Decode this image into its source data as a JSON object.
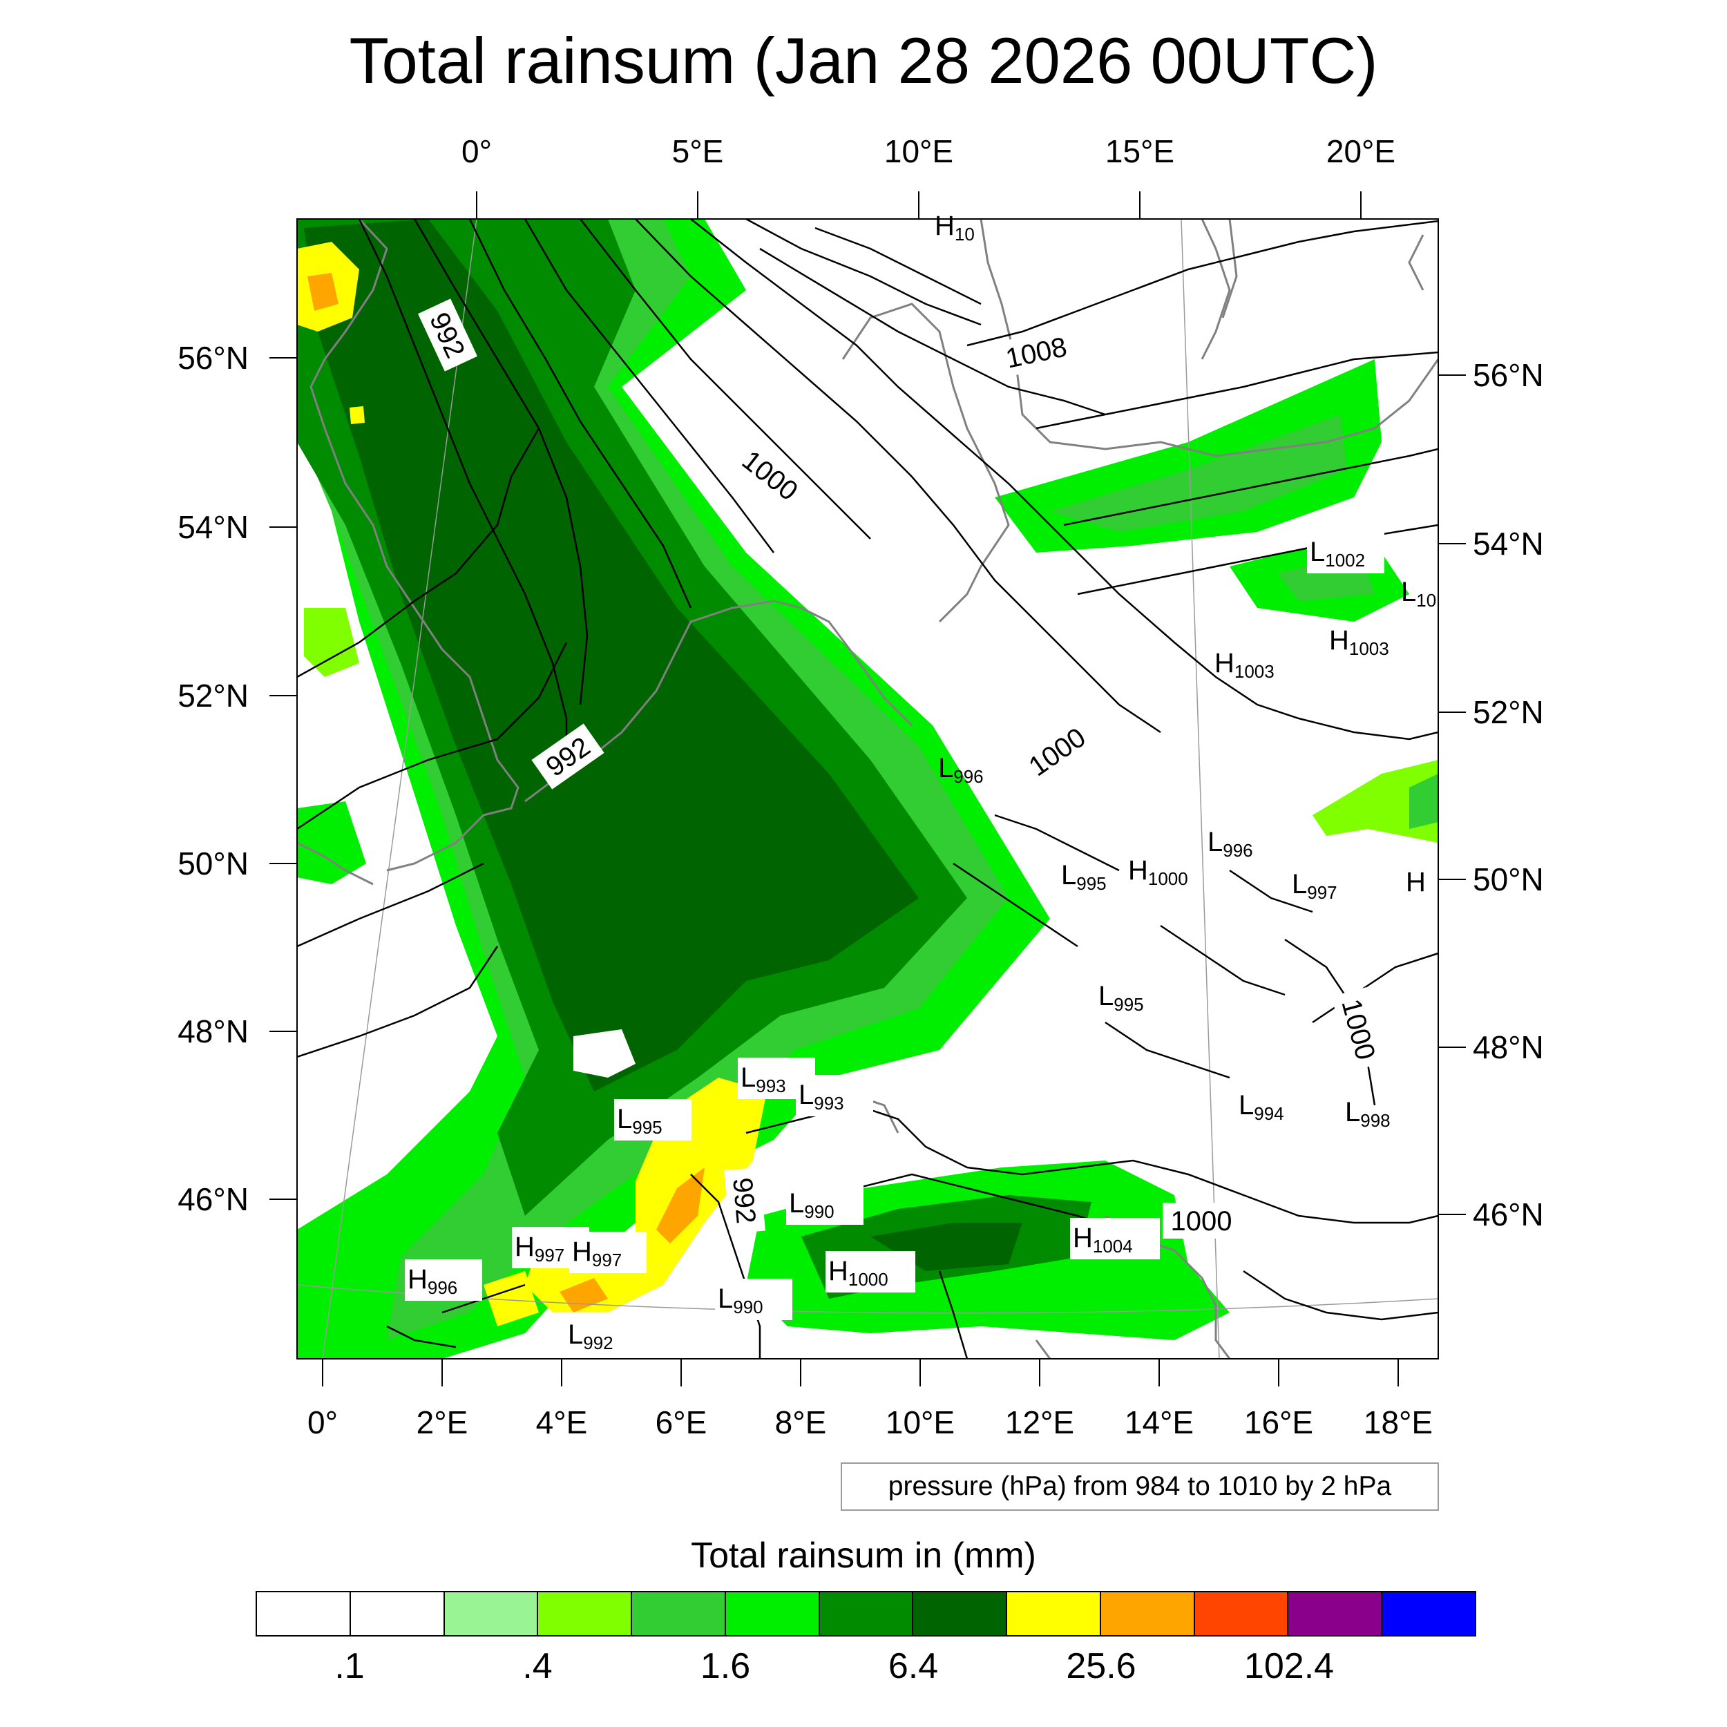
{
  "title": "Total rainsum (Jan 28 2026 00UTC)",
  "top_lon_ticks": [
    "0°",
    "5°E",
    "10°E",
    "15°E",
    "20°E"
  ],
  "bottom_lon_ticks": [
    "0°",
    "2°E",
    "4°E",
    "6°E",
    "8°E",
    "10°E",
    "12°E",
    "14°E",
    "16°E",
    "18°E"
  ],
  "left_lat_ticks": [
    "56°N",
    "54°N",
    "52°N",
    "50°N",
    "48°N",
    "46°N"
  ],
  "right_lat_ticks": [
    "56°N",
    "54°N",
    "52°N",
    "50°N",
    "48°N",
    "46°N"
  ],
  "pressure_note": "pressure (hPa) from 984 to 1010 by 2 hPa",
  "colorbar": {
    "title": "Total rainsum in (mm)",
    "colors": [
      "#ffffff",
      "#ffffff",
      "#99f594",
      "#7fff00",
      "#32cd32",
      "#00ee00",
      "#008b00",
      "#006400",
      "#ffff00",
      "#ffa500",
      "#ff4500",
      "#8b008b",
      "#0000ff"
    ],
    "labels": [
      ".1",
      ".4",
      "1.6",
      "6.4",
      "25.6",
      "102.4"
    ]
  },
  "isobar_labels": [
    "992",
    "992",
    "992",
    "1000",
    "1000",
    "1000",
    "1000",
    "1008"
  ],
  "pressure_centers": [
    {
      "type": "H",
      "value": "10"
    },
    {
      "type": "L",
      "value": "1002"
    },
    {
      "type": "L",
      "value": "10"
    },
    {
      "type": "H",
      "value": "1003"
    },
    {
      "type": "H",
      "value": "1003"
    },
    {
      "type": "L",
      "value": "996"
    },
    {
      "type": "L",
      "value": "996"
    },
    {
      "type": "L",
      "value": "995"
    },
    {
      "type": "H",
      "value": "1000"
    },
    {
      "type": "L",
      "value": "997"
    },
    {
      "type": "H",
      "value": ""
    },
    {
      "type": "L",
      "value": "995"
    },
    {
      "type": "L",
      "value": "993"
    },
    {
      "type": "L",
      "value": "993"
    },
    {
      "type": "L",
      "value": "995"
    },
    {
      "type": "L",
      "value": "994"
    },
    {
      "type": "L",
      "value": "998"
    },
    {
      "type": "L",
      "value": "990"
    },
    {
      "type": "H",
      "value": "997"
    },
    {
      "type": "H",
      "value": "997"
    },
    {
      "type": "H",
      "value": "1000"
    },
    {
      "type": "H",
      "value": "1004"
    },
    {
      "type": "H",
      "value": "996"
    },
    {
      "type": "L",
      "value": "990"
    },
    {
      "type": "L",
      "value": "992"
    }
  ]
}
